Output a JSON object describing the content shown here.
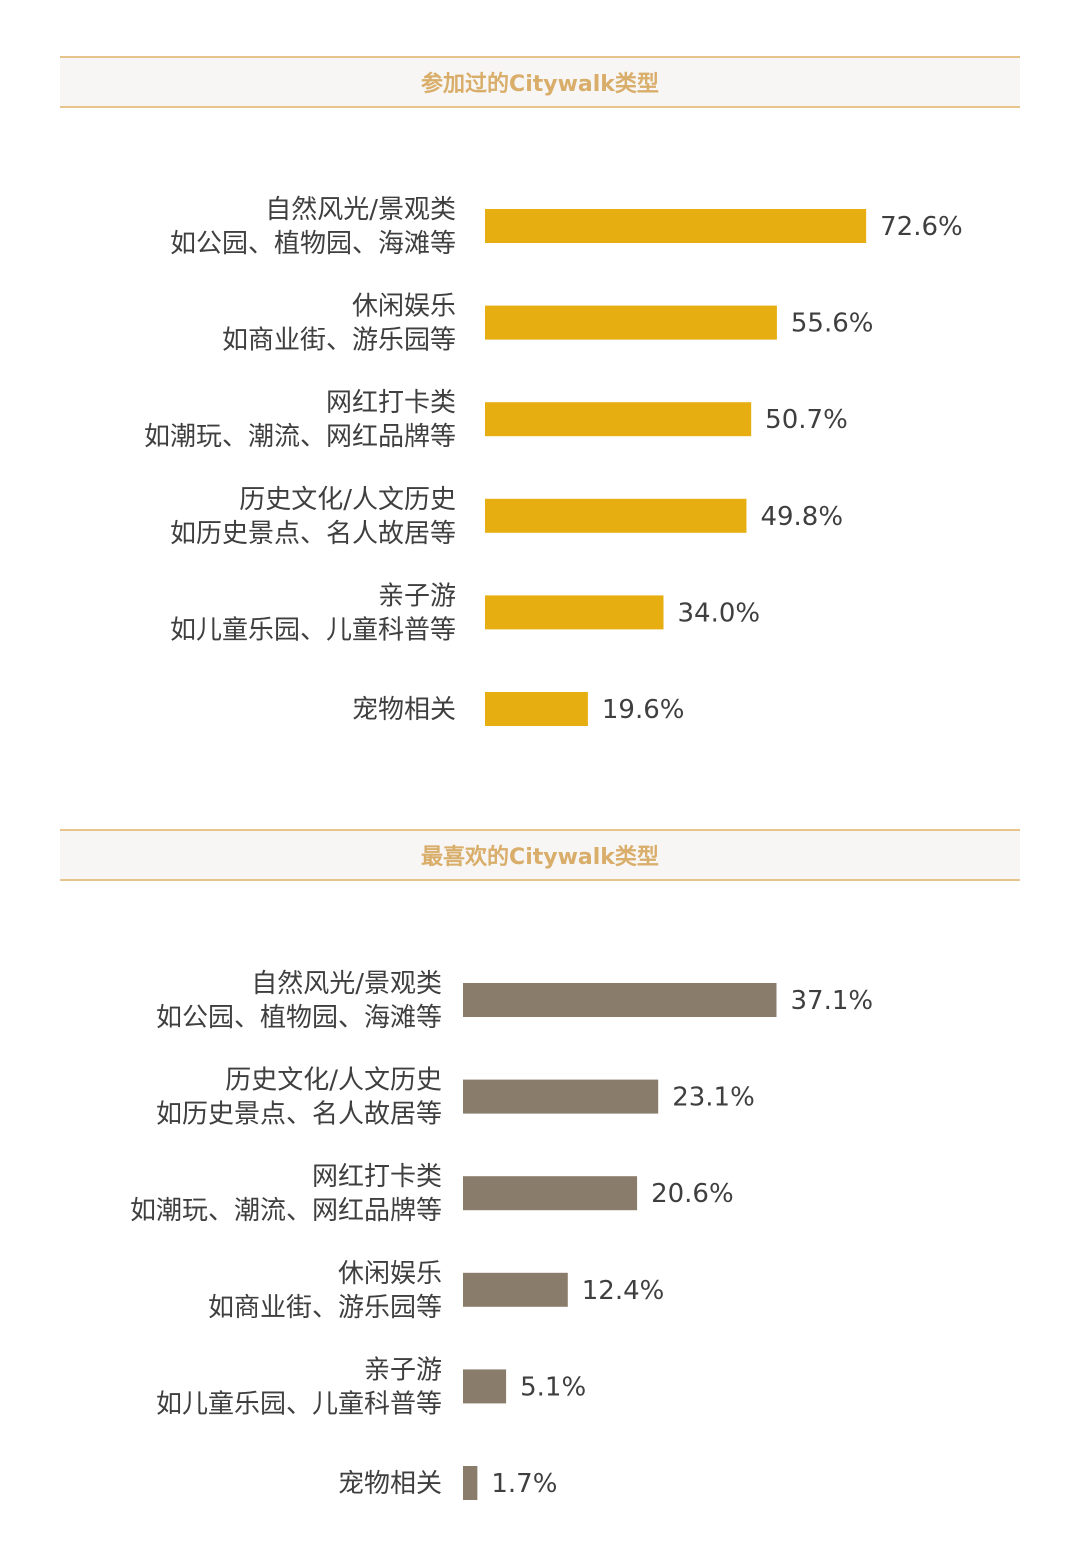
{
  "colors": {
    "header_text": "#d9ad6a",
    "header_line": "#e6c48c",
    "series1": "#e6ae10",
    "series2": "#8a7c6a"
  },
  "chart_data": [
    {
      "type": "bar",
      "orientation": "horizontal",
      "title": "参加过的Citywalk类型",
      "categories": [
        [
          "自然风光/景观类",
          "如公园、植物园、海滩等"
        ],
        [
          "休闲娱乐",
          "如商业街、游乐园等"
        ],
        [
          "网红打卡类",
          "如潮玩、潮流、网红品牌等"
        ],
        [
          "历史文化/人文历史",
          "如历史景点、名人故居等"
        ],
        [
          "亲子游",
          "如儿童乐园、儿童科普等"
        ],
        [
          "宠物相关"
        ]
      ],
      "values": [
        72.6,
        55.6,
        50.7,
        49.8,
        34.0,
        19.6
      ],
      "value_labels": [
        "72.6%",
        "55.6%",
        "50.7%",
        "49.8%",
        "34.0%",
        "19.6%"
      ],
      "xlim": [
        0,
        100
      ],
      "grid": false
    },
    {
      "type": "bar",
      "orientation": "horizontal",
      "title": "最喜欢的Citywalk类型",
      "categories": [
        [
          "自然风光/景观类",
          "如公园、植物园、海滩等"
        ],
        [
          "历史文化/人文历史",
          "如历史景点、名人故居等"
        ],
        [
          "网红打卡类",
          "如潮玩、潮流、网红品牌等"
        ],
        [
          "休闲娱乐",
          "如商业街、游乐园等"
        ],
        [
          "亲子游",
          "如儿童乐园、儿童科普等"
        ],
        [
          "宠物相关"
        ]
      ],
      "values": [
        37.1,
        23.1,
        20.6,
        12.4,
        5.1,
        1.7
      ],
      "value_labels": [
        "37.1%",
        "23.1%",
        "20.6%",
        "12.4%",
        "5.1%",
        "1.7%"
      ],
      "xlim": [
        0,
        60
      ],
      "grid": false
    }
  ]
}
